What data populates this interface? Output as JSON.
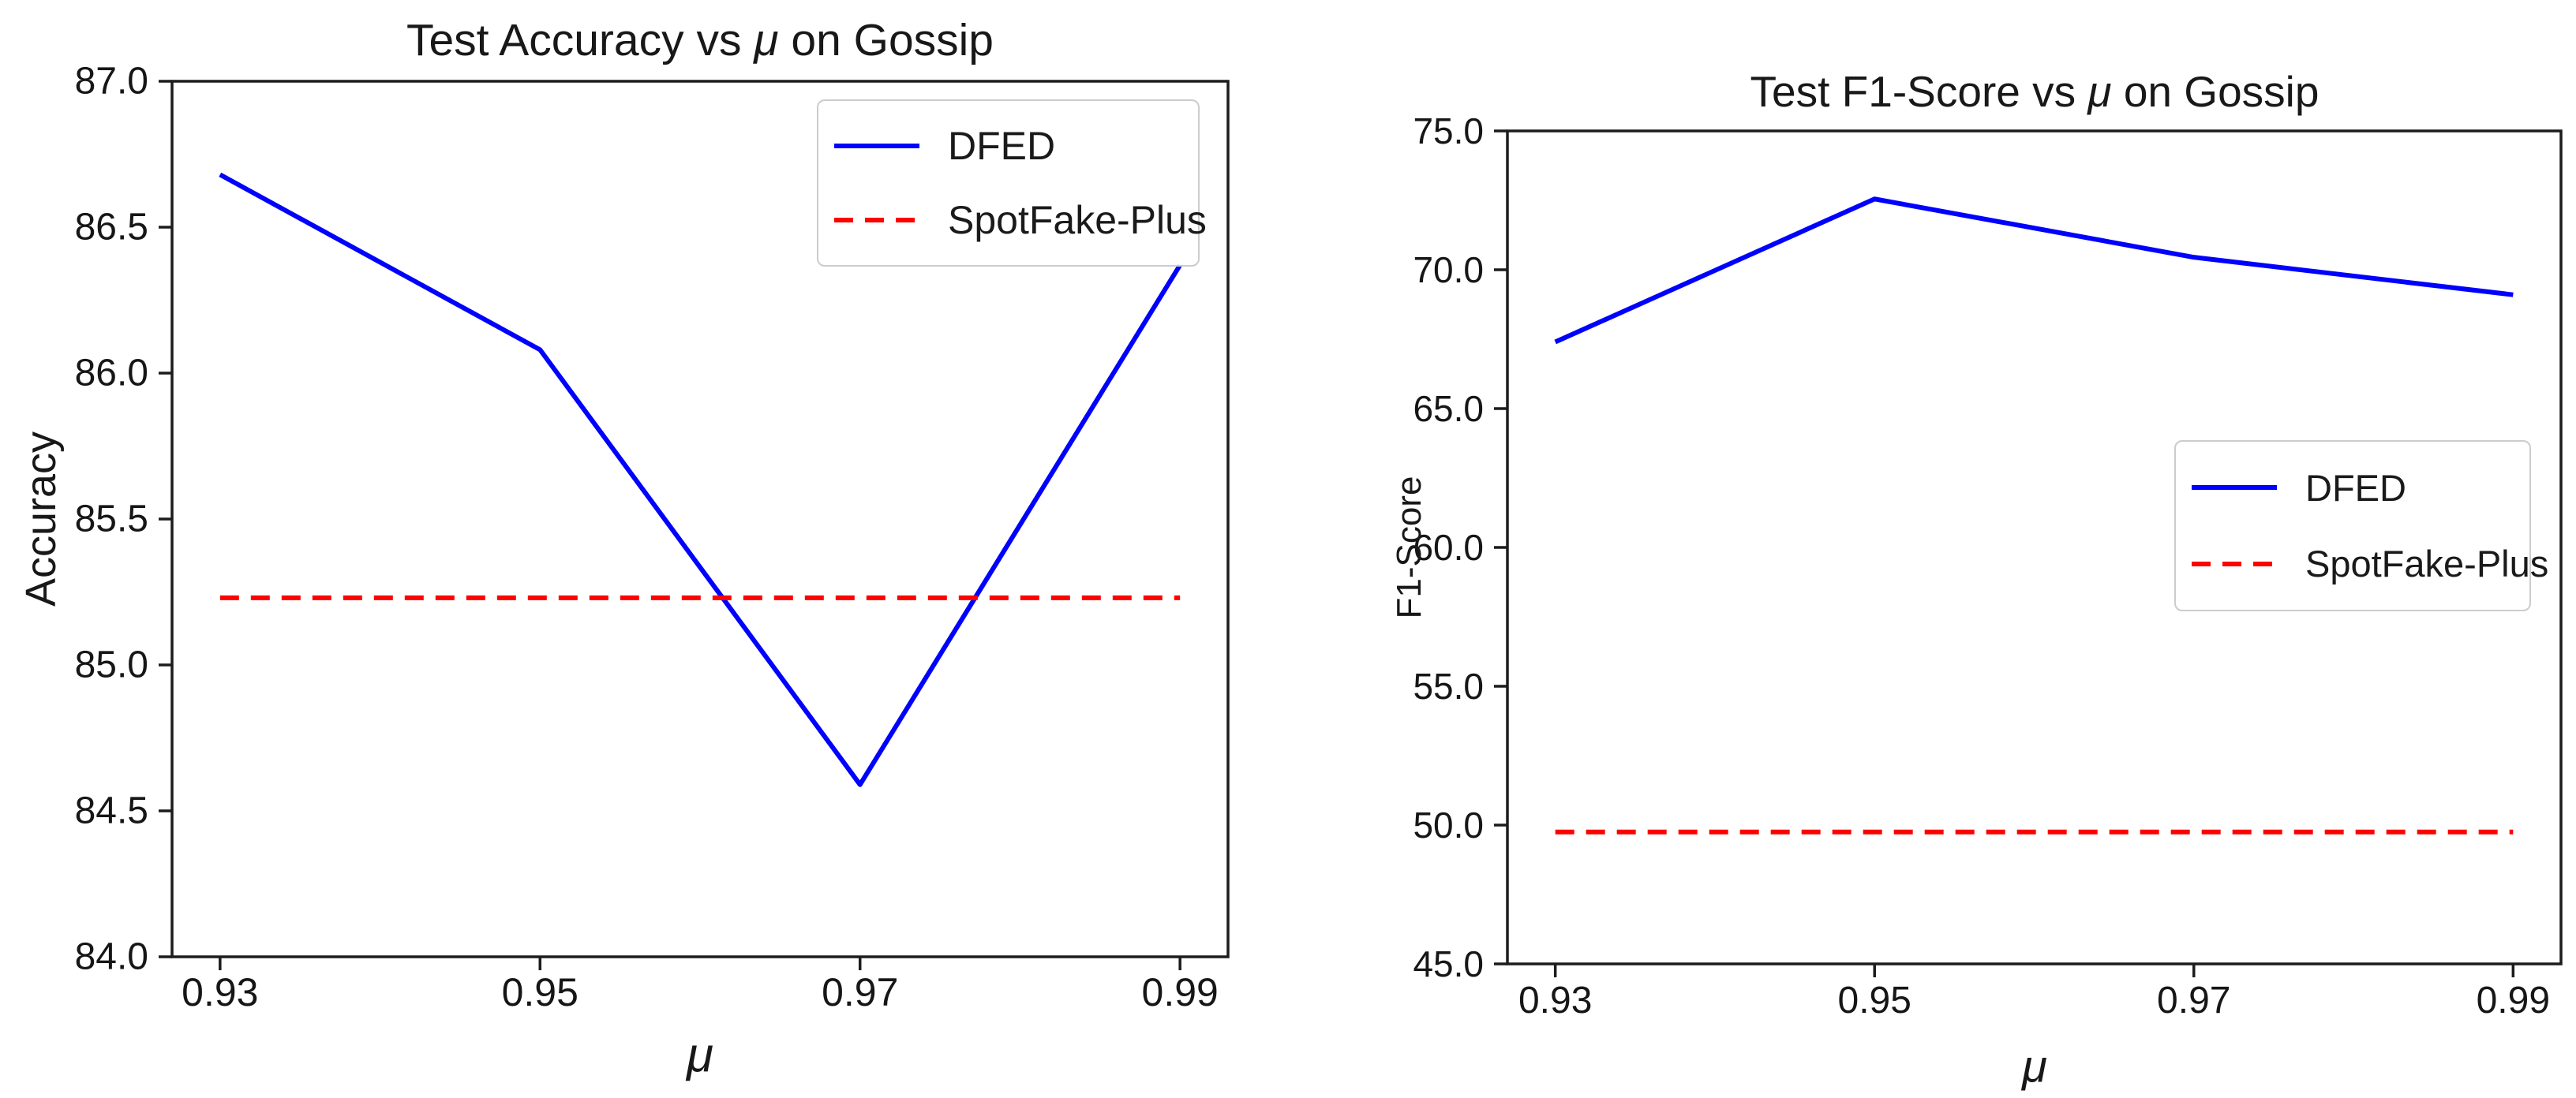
{
  "figure": {
    "background": "#ffffff",
    "axis_color": "#1c1c1c",
    "text_color": "#161616",
    "legend_border_color": "#cccccc"
  },
  "chart_data": [
    {
      "type": "line",
      "title": "Test Accuracy vs μ on Gossip",
      "title_parts": {
        "pre": "Test Accuracy vs ",
        "mu": "μ",
        "post": " on Gossip"
      },
      "xlabel": "μ",
      "ylabel": "Accuracy",
      "x": [
        0.93,
        0.95,
        0.97,
        0.99
      ],
      "xtick_labels": [
        "0.93",
        "0.95",
        "0.97",
        "0.99"
      ],
      "xlim": [
        0.927,
        0.993
      ],
      "ylim": [
        84.0,
        87.0
      ],
      "yticks": [
        87.0,
        86.5,
        86.0,
        85.5,
        85.0,
        84.5,
        84.0
      ],
      "ytick_labels": [
        "87.0",
        "86.5",
        "86.0",
        "85.5",
        "85.0",
        "84.5",
        "84.0"
      ],
      "grid": false,
      "legend_position": "top-right",
      "series": [
        {
          "name": "DFED",
          "style": "solid",
          "color": "#0000ff",
          "values": [
            86.68,
            86.08,
            84.59,
            86.37
          ]
        },
        {
          "name": "SpotFake-Plus",
          "style": "dashed",
          "color": "#ff0000",
          "values": [
            85.23,
            85.23,
            85.23,
            85.23
          ]
        }
      ]
    },
    {
      "type": "line",
      "title": "Test F1-Score vs μ on Gossip",
      "title_parts": {
        "pre": "Test F1-Score vs ",
        "mu": "μ",
        "post": " on Gossip"
      },
      "xlabel": "μ",
      "ylabel": "F1-Score",
      "x": [
        0.93,
        0.95,
        0.97,
        0.99
      ],
      "xtick_labels": [
        "0.93",
        "0.95",
        "0.97",
        "0.99"
      ],
      "xlim": [
        0.927,
        0.993
      ],
      "ylim": [
        45.0,
        75.0
      ],
      "yticks": [
        75.0,
        70.0,
        65.0,
        60.0,
        55.0,
        50.0,
        45.0
      ],
      "ytick_labels": [
        "75.0",
        "70.0",
        "65.0",
        "60.0",
        "55.0",
        "50.0",
        "45.0"
      ],
      "grid": false,
      "legend_position": "center-right",
      "series": [
        {
          "name": "DFED",
          "style": "solid",
          "color": "#0000ff",
          "values": [
            67.4,
            72.55,
            70.45,
            69.1
          ]
        },
        {
          "name": "SpotFake-Plus",
          "style": "dashed",
          "color": "#ff0000",
          "values": [
            49.75,
            49.75,
            49.75,
            49.75
          ]
        }
      ]
    }
  ]
}
